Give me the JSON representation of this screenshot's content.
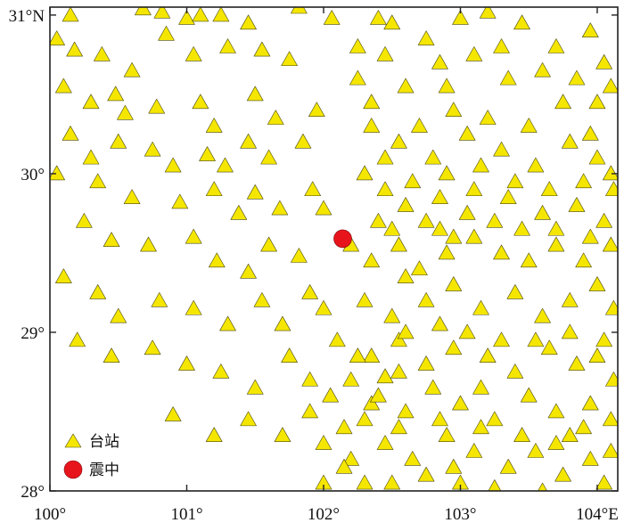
{
  "map": {
    "lon_range": [
      100,
      104.15
    ],
    "lat_range": [
      28,
      31.05
    ],
    "x_ticks": [
      {
        "value": 100,
        "label": "100°"
      },
      {
        "value": 101,
        "label": "101°"
      },
      {
        "value": 102,
        "label": "102°"
      },
      {
        "value": 103,
        "label": "103°"
      },
      {
        "value": 104,
        "label": "104°E"
      }
    ],
    "y_ticks": [
      {
        "value": 31,
        "label": "31°N"
      },
      {
        "value": 30,
        "label": "30°"
      },
      {
        "value": 29,
        "label": "29°"
      },
      {
        "value": 28,
        "label": "28°"
      }
    ],
    "colors": {
      "station_fill": "#f5e600",
      "epicenter_fill": "#e8141c",
      "frame": "#222222"
    },
    "legend": {
      "station_label": "台站",
      "epicenter_label": "震中"
    },
    "epicenter": [
      102.14,
      29.59
    ],
    "stations": [
      [
        100.15,
        31.0
      ],
      [
        100.68,
        31.04
      ],
      [
        100.82,
        31.02
      ],
      [
        101.0,
        30.98
      ],
      [
        101.1,
        31.0
      ],
      [
        101.25,
        31.0
      ],
      [
        101.45,
        30.95
      ],
      [
        101.82,
        31.05
      ],
      [
        102.06,
        30.98
      ],
      [
        102.4,
        30.98
      ],
      [
        100.05,
        30.85
      ],
      [
        100.18,
        30.78
      ],
      [
        100.38,
        30.75
      ],
      [
        100.6,
        30.65
      ],
      [
        100.85,
        30.88
      ],
      [
        101.05,
        30.75
      ],
      [
        101.3,
        30.8
      ],
      [
        101.55,
        30.78
      ],
      [
        101.75,
        30.72
      ],
      [
        102.25,
        30.6
      ],
      [
        100.1,
        30.55
      ],
      [
        100.3,
        30.45
      ],
      [
        100.48,
        30.5
      ],
      [
        100.55,
        30.38
      ],
      [
        100.78,
        30.42
      ],
      [
        101.1,
        30.45
      ],
      [
        101.2,
        30.3
      ],
      [
        101.5,
        30.5
      ],
      [
        101.65,
        30.35
      ],
      [
        101.95,
        30.4
      ],
      [
        100.15,
        30.25
      ],
      [
        100.3,
        30.1
      ],
      [
        100.5,
        30.2
      ],
      [
        100.75,
        30.15
      ],
      [
        100.9,
        30.05
      ],
      [
        101.15,
        30.12
      ],
      [
        101.28,
        30.05
      ],
      [
        101.45,
        30.2
      ],
      [
        101.6,
        30.1
      ],
      [
        101.85,
        30.2
      ],
      [
        100.05,
        30.0
      ],
      [
        100.35,
        29.95
      ],
      [
        100.6,
        29.85
      ],
      [
        100.95,
        29.82
      ],
      [
        101.2,
        29.9
      ],
      [
        101.38,
        29.75
      ],
      [
        101.5,
        29.88
      ],
      [
        101.68,
        29.78
      ],
      [
        101.92,
        29.9
      ],
      [
        102.0,
        29.78
      ],
      [
        100.25,
        29.7
      ],
      [
        100.45,
        29.58
      ],
      [
        100.72,
        29.55
      ],
      [
        101.05,
        29.6
      ],
      [
        101.22,
        29.45
      ],
      [
        101.45,
        29.38
      ],
      [
        101.6,
        29.55
      ],
      [
        101.82,
        29.48
      ],
      [
        102.2,
        29.55
      ],
      [
        102.4,
        29.7
      ],
      [
        100.1,
        29.35
      ],
      [
        100.35,
        29.25
      ],
      [
        100.5,
        29.1
      ],
      [
        100.8,
        29.2
      ],
      [
        101.05,
        29.15
      ],
      [
        101.3,
        29.05
      ],
      [
        101.55,
        29.2
      ],
      [
        101.7,
        29.05
      ],
      [
        101.9,
        29.25
      ],
      [
        102.0,
        29.15
      ],
      [
        100.2,
        28.95
      ],
      [
        100.45,
        28.85
      ],
      [
        100.75,
        28.9
      ],
      [
        101.0,
        28.8
      ],
      [
        101.25,
        28.75
      ],
      [
        101.5,
        28.65
      ],
      [
        101.75,
        28.85
      ],
      [
        101.9,
        28.7
      ],
      [
        102.05,
        28.6
      ],
      [
        102.1,
        28.95
      ],
      [
        100.9,
        28.48
      ],
      [
        101.2,
        28.35
      ],
      [
        101.45,
        28.45
      ],
      [
        101.7,
        28.35
      ],
      [
        101.9,
        28.5
      ],
      [
        102.0,
        28.3
      ],
      [
        102.15,
        28.4
      ],
      [
        102.2,
        28.2
      ],
      [
        102.3,
        28.05
      ],
      [
        102.35,
        28.55
      ],
      [
        102.5,
        30.95
      ],
      [
        102.75,
        30.85
      ],
      [
        103.0,
        30.98
      ],
      [
        103.2,
        31.02
      ],
      [
        103.45,
        30.95
      ],
      [
        103.7,
        30.8
      ],
      [
        103.95,
        30.9
      ],
      [
        104.05,
        30.7
      ],
      [
        103.35,
        30.6
      ],
      [
        102.9,
        30.55
      ],
      [
        102.35,
        30.3
      ],
      [
        102.55,
        30.2
      ],
      [
        102.8,
        30.1
      ],
      [
        103.05,
        30.25
      ],
      [
        103.3,
        30.15
      ],
      [
        103.55,
        30.05
      ],
      [
        103.8,
        30.2
      ],
      [
        104.0,
        30.1
      ],
      [
        104.1,
        30.0
      ],
      [
        103.9,
        29.95
      ],
      [
        102.3,
        30.0
      ],
      [
        102.45,
        29.9
      ],
      [
        102.6,
        29.8
      ],
      [
        102.85,
        29.85
      ],
      [
        103.1,
        29.9
      ],
      [
        103.35,
        29.85
      ],
      [
        103.6,
        29.75
      ],
      [
        103.85,
        29.8
      ],
      [
        104.05,
        29.7
      ],
      [
        104.12,
        29.9
      ],
      [
        102.35,
        29.45
      ],
      [
        102.55,
        29.55
      ],
      [
        102.7,
        29.4
      ],
      [
        102.9,
        29.5
      ],
      [
        103.1,
        29.6
      ],
      [
        103.3,
        29.5
      ],
      [
        103.5,
        29.45
      ],
      [
        103.7,
        29.55
      ],
      [
        103.9,
        29.45
      ],
      [
        104.1,
        29.55
      ],
      [
        102.3,
        29.2
      ],
      [
        102.5,
        29.1
      ],
      [
        102.75,
        29.2
      ],
      [
        102.95,
        29.3
      ],
      [
        103.15,
        29.15
      ],
      [
        103.4,
        29.25
      ],
      [
        103.6,
        29.1
      ],
      [
        103.8,
        29.2
      ],
      [
        104.0,
        29.3
      ],
      [
        104.12,
        29.15
      ],
      [
        102.35,
        28.85
      ],
      [
        102.55,
        28.95
      ],
      [
        102.75,
        28.8
      ],
      [
        102.95,
        28.9
      ],
      [
        103.2,
        28.85
      ],
      [
        103.4,
        28.75
      ],
      [
        103.65,
        28.9
      ],
      [
        103.85,
        28.8
      ],
      [
        104.05,
        28.95
      ],
      [
        104.12,
        28.7
      ],
      [
        102.4,
        28.6
      ],
      [
        102.6,
        28.5
      ],
      [
        102.8,
        28.65
      ],
      [
        103.0,
        28.55
      ],
      [
        103.25,
        28.45
      ],
      [
        103.5,
        28.6
      ],
      [
        103.7,
        28.5
      ],
      [
        103.95,
        28.55
      ],
      [
        104.1,
        28.45
      ],
      [
        103.8,
        28.35
      ],
      [
        102.45,
        28.3
      ],
      [
        102.65,
        28.2
      ],
      [
        102.9,
        28.35
      ],
      [
        103.1,
        28.25
      ],
      [
        103.35,
        28.15
      ],
      [
        103.55,
        28.25
      ],
      [
        103.75,
        28.1
      ],
      [
        103.95,
        28.2
      ],
      [
        104.05,
        28.05
      ],
      [
        103.25,
        28.02
      ],
      [
        102.5,
        28.05
      ],
      [
        102.75,
        28.1
      ],
      [
        103.0,
        28.05
      ],
      [
        103.6,
        28.0
      ],
      [
        102.2,
        28.7
      ],
      [
        102.25,
        28.85
      ],
      [
        102.45,
        28.72
      ],
      [
        102.6,
        29.35
      ],
      [
        102.85,
        29.65
      ],
      [
        103.05,
        29.75
      ],
      [
        102.65,
        29.95
      ],
      [
        102.9,
        30.0
      ],
      [
        103.15,
        30.05
      ],
      [
        103.4,
        29.95
      ],
      [
        103.65,
        29.9
      ],
      [
        102.45,
        30.1
      ],
      [
        102.7,
        30.3
      ],
      [
        102.95,
        30.4
      ],
      [
        103.2,
        30.35
      ],
      [
        103.5,
        30.3
      ],
      [
        103.75,
        30.45
      ],
      [
        104.0,
        30.45
      ],
      [
        103.95,
        30.25
      ],
      [
        102.5,
        29.65
      ],
      [
        102.75,
        29.7
      ],
      [
        102.95,
        29.6
      ],
      [
        103.25,
        29.7
      ],
      [
        103.45,
        29.65
      ],
      [
        103.7,
        29.65
      ],
      [
        103.95,
        29.6
      ],
      [
        102.6,
        29.0
      ],
      [
        102.85,
        29.05
      ],
      [
        103.05,
        29.0
      ],
      [
        103.3,
        28.95
      ],
      [
        103.55,
        28.95
      ],
      [
        103.8,
        29.0
      ],
      [
        104.0,
        28.85
      ],
      [
        102.55,
        28.75
      ],
      [
        102.85,
        28.45
      ],
      [
        103.15,
        28.65
      ],
      [
        103.45,
        28.35
      ],
      [
        103.7,
        28.3
      ],
      [
        103.9,
        28.4
      ],
      [
        104.1,
        28.25
      ],
      [
        102.3,
        28.45
      ],
      [
        102.15,
        28.15
      ],
      [
        102.0,
        28.05
      ],
      [
        102.55,
        28.4
      ],
      [
        102.95,
        28.15
      ],
      [
        103.15,
        28.4
      ],
      [
        102.35,
        30.45
      ],
      [
        102.6,
        30.55
      ],
      [
        102.85,
        30.7
      ],
      [
        103.1,
        30.75
      ],
      [
        103.3,
        30.8
      ],
      [
        103.6,
        30.65
      ],
      [
        103.85,
        30.6
      ],
      [
        104.1,
        30.55
      ],
      [
        102.25,
        30.8
      ],
      [
        102.45,
        30.75
      ]
    ]
  }
}
